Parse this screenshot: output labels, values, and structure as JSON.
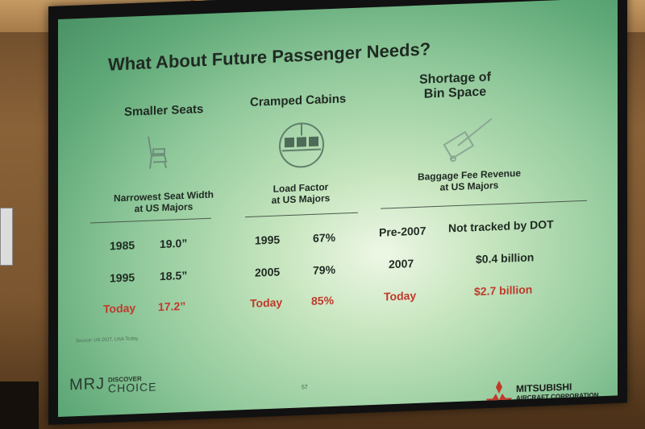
{
  "slide": {
    "title": "What About Future Passenger Needs?",
    "columns": [
      {
        "heading": "Smaller Seats",
        "icon": "seat-icon",
        "subheading": "Narrowest Seat Width\nat US Majors",
        "rows": [
          {
            "label": "1985",
            "value": "19.0”",
            "highlight": false
          },
          {
            "label": "1995",
            "value": "18.5”",
            "highlight": false
          },
          {
            "label": "Today",
            "value": "17.2”",
            "highlight": true
          }
        ]
      },
      {
        "heading": "Cramped Cabins",
        "icon": "cabin-seats-icon",
        "subheading": "Load Factor\nat US Majors",
        "rows": [
          {
            "label": "1995",
            "value": "67%",
            "highlight": false
          },
          {
            "label": "2005",
            "value": "79%",
            "highlight": false
          },
          {
            "label": "Today",
            "value": "85%",
            "highlight": true
          }
        ]
      },
      {
        "heading": "Shortage of\nBin Space",
        "icon": "luggage-trolley-icon",
        "subheading": "Baggage Fee Revenue\nat US Majors",
        "rows": [
          {
            "label": "Pre-2007",
            "value": "Not tracked by DOT",
            "highlight": false
          },
          {
            "label": "2007",
            "value": "$0.4 billion",
            "highlight": false
          },
          {
            "label": "Today",
            "value": "$2.7 billion",
            "highlight": true
          }
        ]
      }
    ],
    "source": "Source: US DOT, USA Today",
    "page_number": "57",
    "footer": {
      "mrj_logo": "MRJ",
      "discover": "DISCOVER",
      "choice": "CHOICE",
      "company_name": "MITSUBISHI",
      "company_sub": "AIRCRAFT CORPORATION"
    },
    "colors": {
      "highlight": "#c0392b",
      "text": "#1f2a22",
      "screen": "#8fc89a"
    }
  }
}
